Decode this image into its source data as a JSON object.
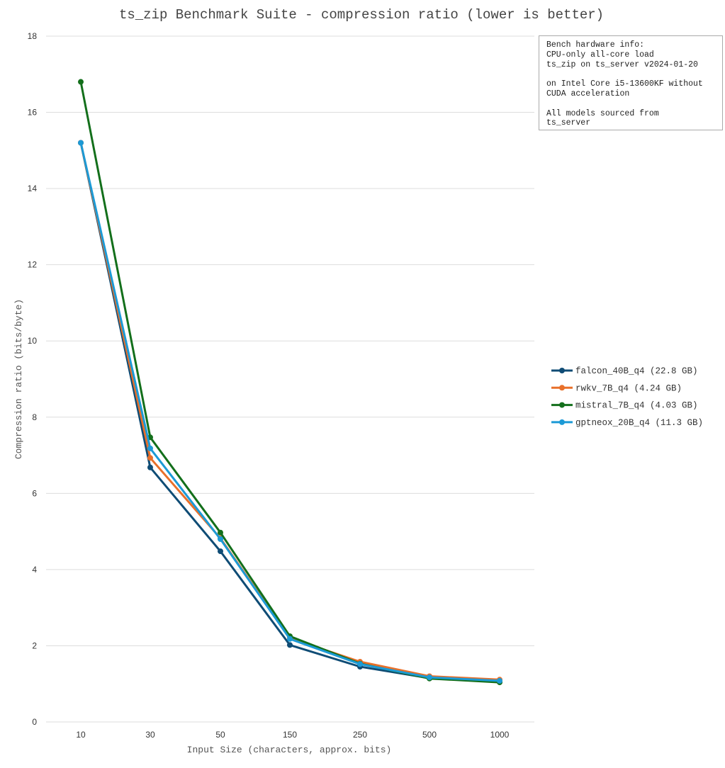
{
  "chart_data": {
    "type": "line",
    "title": "ts_zip Benchmark Suite - compression ratio (lower is better)",
    "xlabel": "Input Size (characters, approx. bits)",
    "ylabel": "Compression ratio (bits/byte)",
    "categories": [
      "10",
      "30",
      "50",
      "150",
      "250",
      "500",
      "1000"
    ],
    "ylim": [
      0,
      18
    ],
    "yticks": [
      "0",
      "2",
      "4",
      "6",
      "8",
      "10",
      "12",
      "14",
      "16",
      "18"
    ],
    "grid": true,
    "legend_position": "right",
    "series": [
      {
        "name": "falcon_40B_q4 (22.8 GB)",
        "color": "#0f4c75",
        "values": [
          15.2,
          6.68,
          4.48,
          2.02,
          1.45,
          1.15,
          1.05
        ]
      },
      {
        "name": "rwkv_7B_q4 (4.24 GB)",
        "color": "#e8702a",
        "values": [
          15.2,
          6.93,
          4.82,
          2.2,
          1.58,
          1.2,
          1.11
        ]
      },
      {
        "name": "mistral_7B_q4 (4.03 GB)",
        "color": "#136f1b",
        "values": [
          16.8,
          7.47,
          4.97,
          2.25,
          1.53,
          1.14,
          1.04
        ]
      },
      {
        "name": "gptneox_20B_q4 (11.3 GB)",
        "color": "#1c9ad6",
        "values": [
          15.2,
          7.18,
          4.8,
          2.18,
          1.52,
          1.17,
          1.08
        ]
      }
    ]
  },
  "info_box": {
    "text": "Bench hardware info:\nCPU-only all-core load\nts_zip on ts_server v2024-01-20\n\non Intel Core i5-13600KF without\nCUDA acceleration\n\nAll models sourced from\nts_server"
  }
}
